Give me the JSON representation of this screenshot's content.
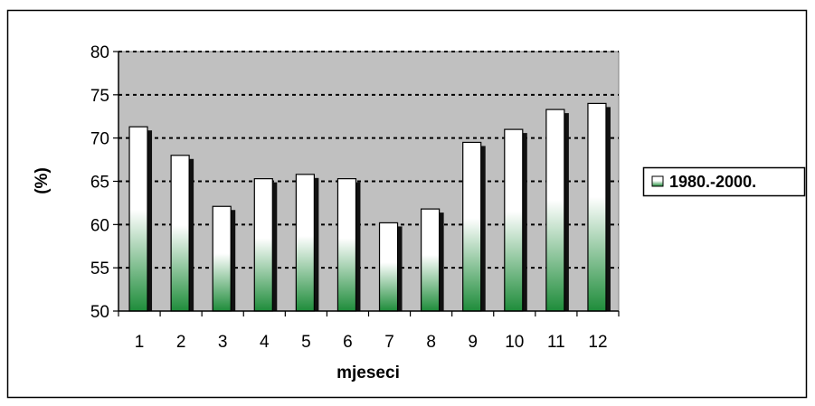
{
  "chart_data": {
    "type": "bar",
    "title": "",
    "xlabel": "mjeseci",
    "ylabel": "(%)",
    "categories": [
      "1",
      "2",
      "3",
      "4",
      "5",
      "6",
      "7",
      "8",
      "9",
      "10",
      "11",
      "12"
    ],
    "series": [
      {
        "name": "1980.-2000.",
        "values": [
          71.3,
          68.0,
          62.1,
          65.3,
          65.8,
          65.3,
          60.2,
          61.8,
          69.5,
          71.0,
          73.3,
          74.0
        ]
      }
    ],
    "ylim": [
      50,
      80
    ],
    "yticks": [
      "50",
      "55",
      "60",
      "65",
      "70",
      "75",
      "80"
    ],
    "grid": true,
    "legend_position": "right",
    "colors": {
      "plot_background": "#c0c0c0",
      "bar_top": "#ffffff",
      "bar_bottom": "#1e8c3a",
      "bar_shadow": "#111111",
      "gridline": "#000000",
      "frame": "#000000"
    }
  }
}
